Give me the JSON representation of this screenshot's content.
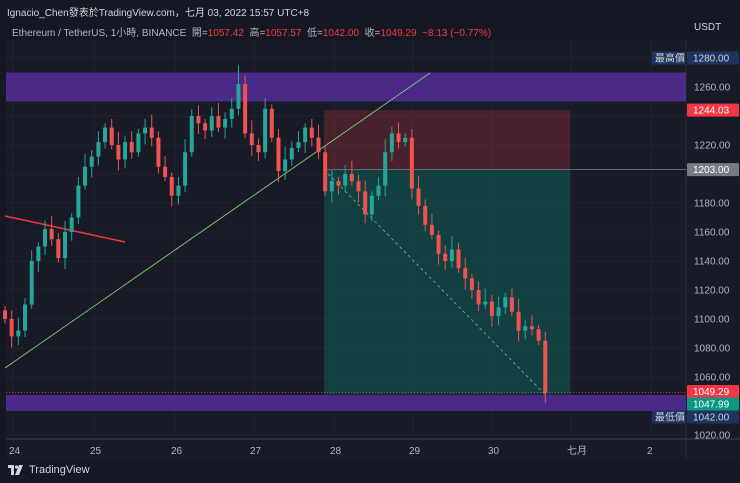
{
  "header": {
    "title": "Ignacio_Chen發表於TradingView.com，七月 03, 2022 15:57 UTC+8",
    "symbol": "Ethereum / TetherUS, 1小時, BINANCE",
    "open_label": "開=",
    "open": "1057.42",
    "high_label": "高=",
    "high": "1057.57",
    "low_label": "低=",
    "low": "1042.00",
    "close_label": "收=",
    "close": "1049.29",
    "change": "−8.13 (−0.77%)"
  },
  "currency": "USDT",
  "footer": {
    "brand": "TradingView"
  },
  "colors": {
    "up": "#26a69a",
    "down": "#ef5350",
    "band": "#5b2fa8",
    "trend_red": "#f23645",
    "trend_green": "#7fc97f"
  },
  "chart_data": {
    "type": "candlestick",
    "interval_in_chart": "2h",
    "x_ticks": [
      "24",
      "25",
      "26",
      "27",
      "28",
      "29",
      "30",
      "七月",
      "2"
    ],
    "y_ticks": [
      1020,
      1040,
      1060,
      1080,
      1100,
      1120,
      1140,
      1160,
      1180,
      1200,
      1220,
      1240,
      1260,
      1280
    ],
    "ylim": [
      1012,
      1298
    ],
    "closes": [
      1100,
      1088,
      1092,
      1110,
      1140,
      1150,
      1162,
      1155,
      1142,
      1160,
      1170,
      1192,
      1205,
      1212,
      1222,
      1232,
      1220,
      1210,
      1222,
      1215,
      1228,
      1232,
      1225,
      1205,
      1198,
      1185,
      1192,
      1215,
      1240,
      1235,
      1230,
      1240,
      1232,
      1238,
      1245,
      1262,
      1228,
      1220,
      1215,
      1245,
      1225,
      1202,
      1210,
      1218,
      1222,
      1232,
      1225,
      1215,
      1188,
      1195,
      1192,
      1200,
      1195,
      1188,
      1172,
      1185,
      1192,
      1215,
      1228,
      1222,
      1225,
      1190,
      1178,
      1165,
      1158,
      1145,
      1140,
      1148,
      1135,
      1128,
      1120,
      1110,
      1112,
      1102,
      1108,
      1115,
      1105,
      1092,
      1095,
      1093,
      1085,
      1049
    ],
    "zones": [
      {
        "from": 1250,
        "to": 1270
      },
      {
        "from": 1036.5,
        "to": 1047.6
      }
    ],
    "position": {
      "stop": 1244.03,
      "entry": 1203.0,
      "target": 1047.99
    },
    "labels": {
      "high_name": "最高價",
      "high": "1280.00",
      "stop": "1244.03",
      "entry": "1203.00",
      "last": "1049.29",
      "target": "1047.99",
      "low_name": "最低價",
      "low": "1042.00"
    }
  }
}
